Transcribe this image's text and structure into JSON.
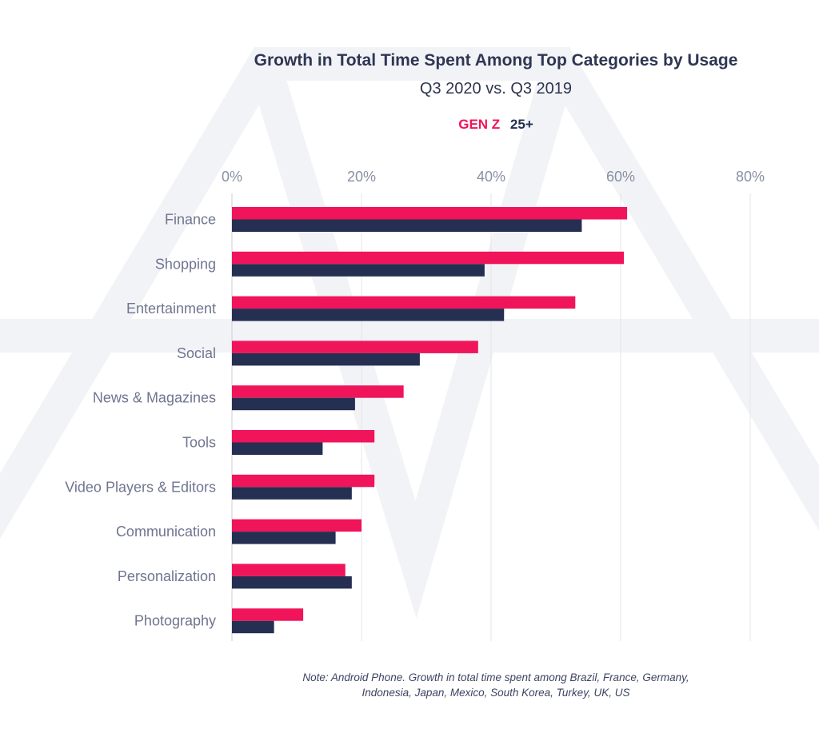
{
  "title": "Growth in Total Time Spent Among Top Categories by Usage",
  "subtitle": "Q3 2020 vs. Q3 2019",
  "legend": [
    {
      "label": "GEN Z",
      "color": "#f0145a"
    },
    {
      "label": "25+",
      "color": "#252f52"
    }
  ],
  "note_lines": [
    "Note: Android Phone. Growth in total time spent among Brazil, France, Germany,",
    "Indonesia, Japan, Mexico, South Korea, Turkey, UK, US"
  ],
  "chart_data": {
    "type": "bar",
    "orientation": "horizontal",
    "categories": [
      "Finance",
      "Shopping",
      "Entertainment",
      "Social",
      "News & Magazines",
      "Tools",
      "Video Players & Editors",
      "Communication",
      "Personalization",
      "Photography"
    ],
    "series": [
      {
        "name": "GEN Z",
        "color": "#f0145a",
        "values": [
          61,
          60.5,
          53,
          38,
          26.5,
          22,
          22,
          20,
          17.5,
          11
        ]
      },
      {
        "name": "25+",
        "color": "#252f52",
        "values": [
          54,
          39,
          42,
          29,
          19,
          14,
          18.5,
          16,
          18.5,
          6.5
        ]
      }
    ],
    "xlim": [
      0,
      80
    ],
    "xticks": [
      0,
      20,
      40,
      60,
      80
    ],
    "xtick_labels": [
      "0%",
      "20%",
      "40%",
      "60%",
      "80%"
    ],
    "grid": true,
    "legend_position": "top"
  }
}
